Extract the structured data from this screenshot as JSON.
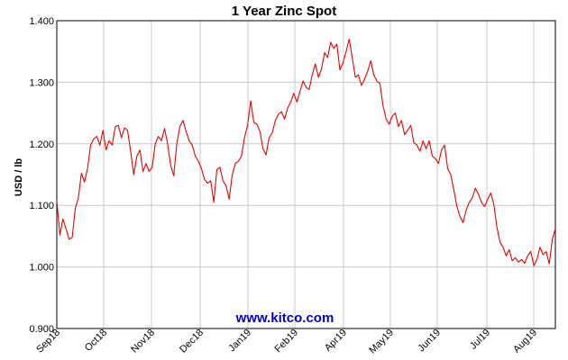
{
  "chart_data": {
    "type": "line",
    "title": "1 Year Zinc Spot",
    "xlabel": "",
    "ylabel": "USD / lb",
    "ylim": [
      0.9,
      1.4
    ],
    "yticks": [
      "0.900",
      "1.000",
      "1.100",
      "1.200",
      "1.300",
      "1.400"
    ],
    "xticks": [
      "Sep18",
      "Oct18",
      "Nov18",
      "Dec18",
      "Jan19",
      "Feb19",
      "Apr19",
      "May19",
      "Jun19",
      "Jul19",
      "Aug19"
    ],
    "grid": true,
    "watermark": "www.kitco.com",
    "line_color": "#ee0000",
    "series": [
      {
        "values": [
          1.108,
          1.052,
          1.078,
          1.062,
          1.045,
          1.048,
          1.095,
          1.112,
          1.152,
          1.138,
          1.16,
          1.198,
          1.208,
          1.212,
          1.198,
          1.222,
          1.19,
          1.205,
          1.198,
          1.228,
          1.23,
          1.21,
          1.226,
          1.222,
          1.188,
          1.15,
          1.18,
          1.19,
          1.155,
          1.168,
          1.155,
          1.162,
          1.2,
          1.212,
          1.205,
          1.225,
          1.2,
          1.165,
          1.148,
          1.2,
          1.228,
          1.238,
          1.22,
          1.205,
          1.198,
          1.18,
          1.172,
          1.16,
          1.142,
          1.136,
          1.14,
          1.105,
          1.158,
          1.162,
          1.14,
          1.132,
          1.11,
          1.15,
          1.168,
          1.172,
          1.18,
          1.21,
          1.23,
          1.27,
          1.235,
          1.232,
          1.22,
          1.192,
          1.182,
          1.21,
          1.218,
          1.238,
          1.248,
          1.252,
          1.24,
          1.258,
          1.268,
          1.282,
          1.268,
          1.285,
          1.302,
          1.292,
          1.288,
          1.312,
          1.33,
          1.308,
          1.322,
          1.348,
          1.34,
          1.365,
          1.355,
          1.362,
          1.32,
          1.332,
          1.35,
          1.37,
          1.34,
          1.308,
          1.312,
          1.295,
          1.305,
          1.318,
          1.335,
          1.312,
          1.302,
          1.298,
          1.262,
          1.24,
          1.232,
          1.245,
          1.25,
          1.228,
          1.238,
          1.215,
          1.222,
          1.23,
          1.202,
          1.198,
          1.188,
          1.205,
          1.192,
          1.205,
          1.18,
          1.176,
          1.168,
          1.19,
          1.198,
          1.16,
          1.15,
          1.125,
          1.098,
          1.082,
          1.072,
          1.092,
          1.105,
          1.112,
          1.128,
          1.118,
          1.105,
          1.098,
          1.11,
          1.12,
          1.102,
          1.065,
          1.04,
          1.032,
          1.018,
          1.028,
          1.01,
          1.015,
          1.008,
          1.012,
          1.006,
          1.018,
          1.025,
          1.002,
          1.012,
          1.032,
          1.02,
          1.025,
          1.005,
          1.045,
          1.062
        ]
      }
    ]
  }
}
